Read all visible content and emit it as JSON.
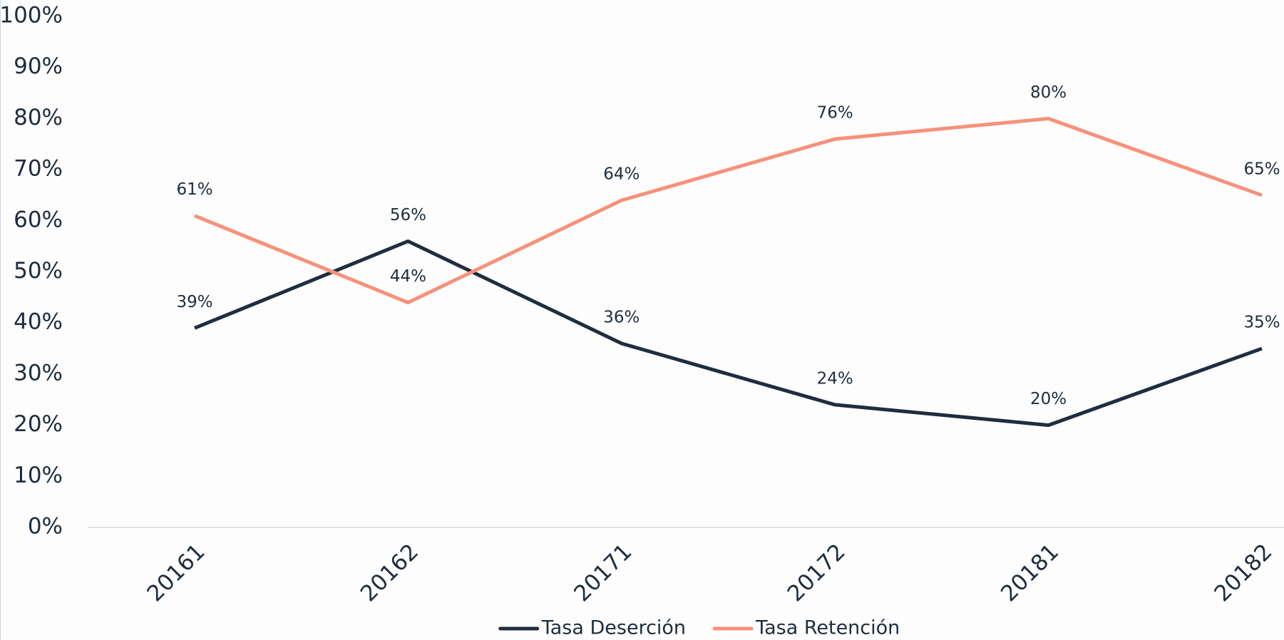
{
  "chart_data": {
    "type": "line",
    "categories": [
      "20161",
      "20162",
      "20171",
      "20172",
      "20181",
      "20182"
    ],
    "series": [
      {
        "name": "Tasa Deserción",
        "color": "#1f2d3f",
        "values": [
          39,
          56,
          36,
          24,
          20,
          35
        ],
        "value_labels": [
          "39%",
          "56%",
          "36%",
          "24%",
          "20%",
          "35%"
        ]
      },
      {
        "name": "Tasa Retención",
        "color": "#f7917a",
        "values": [
          61,
          44,
          64,
          76,
          80,
          65
        ],
        "value_labels": [
          "61%",
          "44%",
          "64%",
          "76%",
          "80%",
          "65%"
        ]
      }
    ],
    "ylim": [
      0,
      100
    ],
    "yticks": [
      {
        "value": 0,
        "label": "0%"
      },
      {
        "value": 10,
        "label": "10%"
      },
      {
        "value": 20,
        "label": "20%"
      },
      {
        "value": 30,
        "label": "30%"
      },
      {
        "value": 40,
        "label": "40%"
      },
      {
        "value": 50,
        "label": "50%"
      },
      {
        "value": 60,
        "label": "60%"
      },
      {
        "value": 70,
        "label": "70%"
      },
      {
        "value": 80,
        "label": "80%"
      },
      {
        "value": 90,
        "label": "90%"
      },
      {
        "value": 100,
        "label": "100%"
      }
    ],
    "legend": "bottom"
  }
}
